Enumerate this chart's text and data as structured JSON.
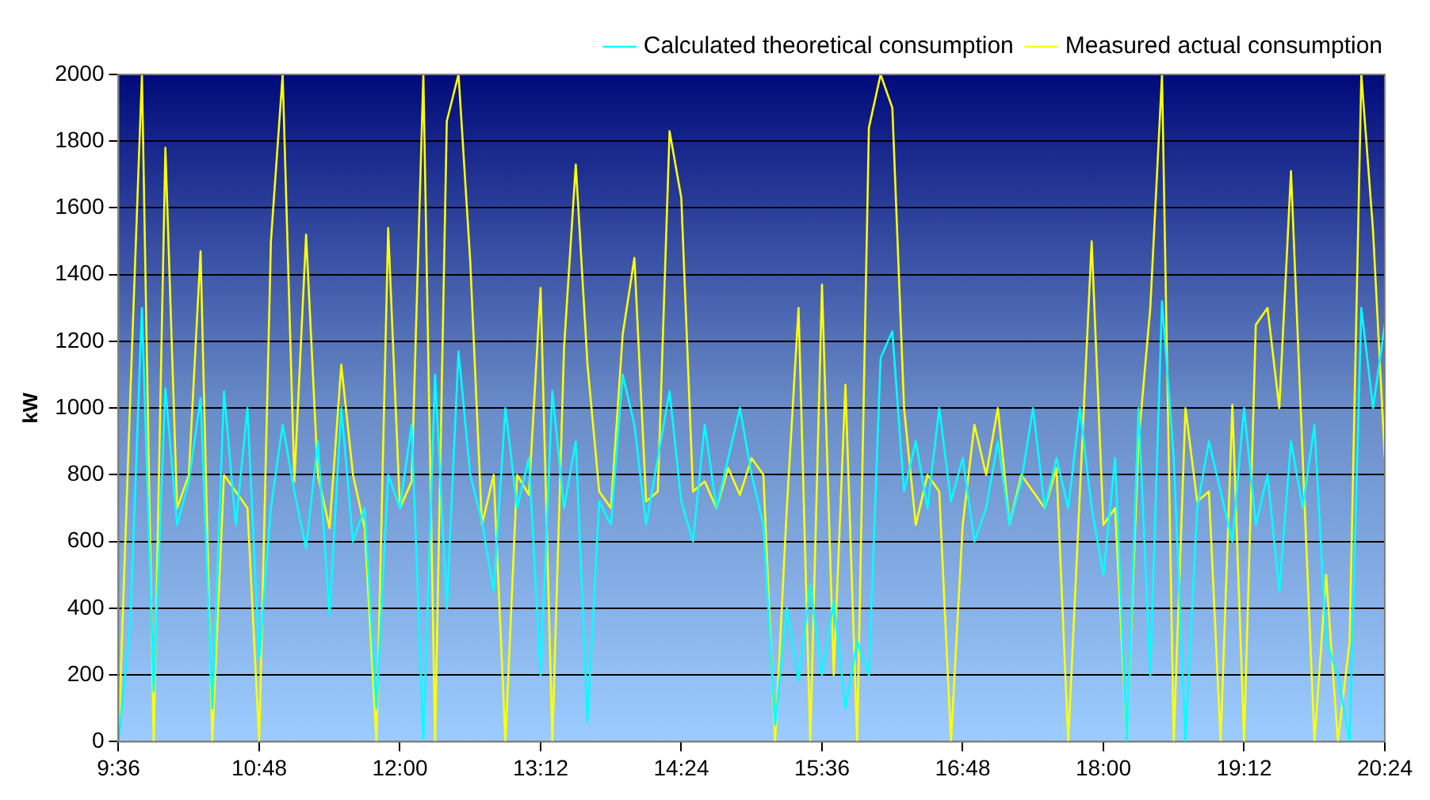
{
  "chart_data": {
    "type": "line",
    "ylabel": "kW",
    "legend": "top right",
    "grid": "y",
    "marker": "none",
    "line_style": "solid",
    "x": [
      9.6,
      9.7,
      9.8,
      9.9,
      10.0,
      10.1,
      10.2,
      10.3,
      10.4,
      10.5,
      10.6,
      10.7,
      10.8,
      10.9,
      11.0,
      11.1,
      11.2,
      11.3,
      11.4,
      11.5,
      11.6,
      11.7,
      11.8,
      11.9,
      12.0,
      12.1,
      12.2,
      12.3,
      12.4,
      12.5,
      12.6,
      12.7,
      12.8,
      12.9,
      13.0,
      13.1,
      13.2,
      13.3,
      13.4,
      13.5,
      13.6,
      13.7,
      13.8,
      13.9,
      14.0,
      14.1,
      14.2,
      14.3,
      14.4,
      14.5,
      14.6,
      14.7,
      14.8,
      14.9,
      15.0,
      15.1,
      15.2,
      15.3,
      15.4,
      15.5,
      15.6,
      15.7,
      15.8,
      15.9,
      16.0,
      16.1,
      16.2,
      16.3,
      16.4,
      16.5,
      16.6,
      16.7,
      16.8,
      16.9,
      17.0,
      17.1,
      17.2,
      17.3,
      17.4,
      17.5,
      17.6,
      17.7,
      17.8,
      17.9,
      18.0,
      18.1,
      18.2,
      18.3,
      18.4,
      18.5,
      18.6,
      18.7,
      18.8,
      18.9,
      19.0,
      19.1,
      19.2,
      19.3,
      19.4,
      19.5,
      19.6,
      19.7,
      19.8,
      19.9,
      20.0,
      20.1,
      20.2,
      20.3,
      20.4
    ],
    "series": [
      {
        "name": "Measured actual consumption",
        "color": "#ffff00",
        "values": [
          0,
          1030,
          2000,
          0,
          1780,
          700,
          800,
          1470,
          0,
          800,
          750,
          700,
          0,
          1500,
          2000,
          780,
          1520,
          800,
          640,
          1130,
          800,
          640,
          0,
          1540,
          700,
          780,
          2000,
          0,
          1860,
          2000,
          1440,
          650,
          800,
          0,
          800,
          740,
          1360,
          0,
          1180,
          1730,
          1130,
          750,
          700,
          1220,
          1450,
          720,
          750,
          1830,
          1630,
          750,
          780,
          700,
          820,
          740,
          850,
          800,
          0,
          700,
          1300,
          0,
          1370,
          200,
          1070,
          0,
          1840,
          2000,
          1900,
          1000,
          650,
          800,
          750,
          0,
          650,
          950,
          800,
          1000,
          650,
          800,
          750,
          700,
          820,
          0,
          750,
          1500,
          650,
          700,
          0,
          900,
          1300,
          2000,
          0,
          1000,
          720,
          750,
          0,
          1010,
          0,
          1250,
          1300,
          1000,
          1710,
          850,
          0,
          500,
          0,
          300,
          2000,
          1530,
          850
        ]
      },
      {
        "name": "Calculated theoretical consumption",
        "color": "#00ffff",
        "values": [
          0,
          350,
          1300,
          150,
          1060,
          650,
          780,
          1030,
          100,
          1050,
          650,
          1000,
          250,
          700,
          950,
          750,
          580,
          900,
          380,
          1000,
          600,
          700,
          100,
          800,
          700,
          950,
          0,
          1100,
          400,
          1170,
          800,
          660,
          450,
          1000,
          700,
          850,
          200,
          1050,
          700,
          900,
          60,
          720,
          650,
          1100,
          950,
          650,
          850,
          1050,
          720,
          600,
          950,
          700,
          850,
          1000,
          800,
          650,
          50,
          400,
          180,
          470,
          200,
          420,
          100,
          300,
          200,
          1150,
          1230,
          750,
          900,
          700,
          1000,
          720,
          850,
          600,
          700,
          900,
          650,
          780,
          1000,
          700,
          850,
          700,
          1000,
          700,
          500,
          850,
          0,
          1000,
          200,
          1320,
          850,
          0,
          700,
          900,
          750,
          600,
          1000,
          650,
          800,
          450,
          900,
          700,
          950,
          300,
          200,
          0,
          1300,
          1000,
          1250
        ]
      }
    ],
    "xlim": [
      9.6,
      20.4
    ],
    "xticks": [
      {
        "value": 9.6,
        "label": "9:36"
      },
      {
        "value": 10.8,
        "label": "10:48"
      },
      {
        "value": 12,
        "label": "12:00"
      },
      {
        "value": 13.2,
        "label": "13:12"
      },
      {
        "value": 14.4,
        "label": "14:24"
      },
      {
        "value": 15.6,
        "label": "15:36"
      },
      {
        "value": 16.8,
        "label": "16:48"
      },
      {
        "value": 18,
        "label": "18:00"
      },
      {
        "value": 19.2,
        "label": "19:12"
      },
      {
        "value": 20.4,
        "label": "20:24"
      }
    ],
    "ylim": [
      0,
      2000
    ],
    "yticks": [
      0,
      200,
      400,
      600,
      800,
      1000,
      1200,
      1400,
      1600,
      1800,
      2000
    ]
  }
}
